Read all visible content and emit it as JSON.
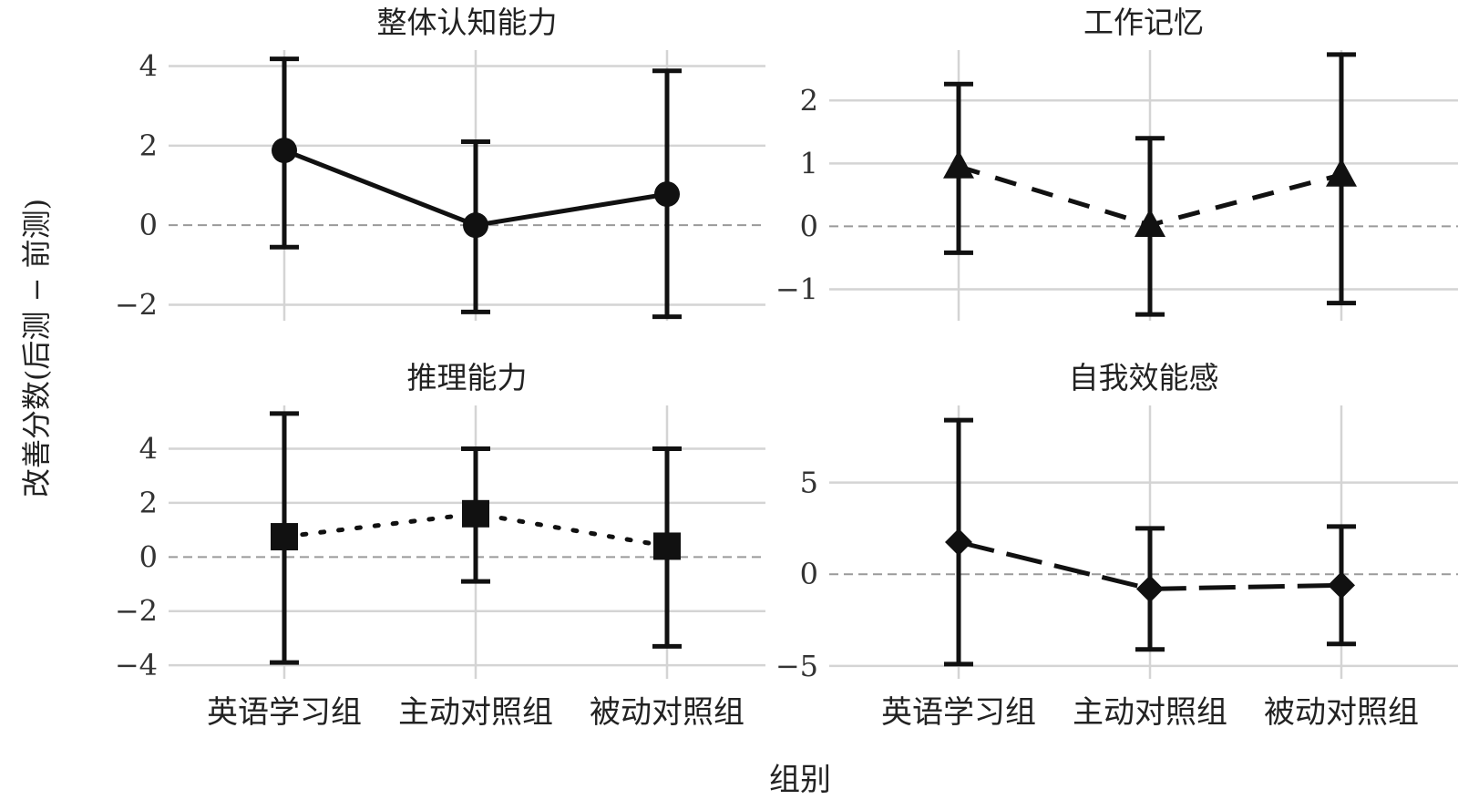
{
  "figure": {
    "ylabel": "改善分数(后测 − 前测)",
    "xlabel": "组别"
  },
  "chart_data": [
    {
      "type": "line",
      "title": "整体认知能力",
      "categories": [
        "英语学习组",
        "主动对照组",
        "被动对照组"
      ],
      "ylim": [
        -2.4,
        4.4
      ],
      "yticks": [
        -2,
        0,
        2,
        4
      ],
      "ytick_labels": [
        "−2",
        "0",
        "2",
        "4"
      ],
      "show_xtick_labels": false,
      "marker": "circle",
      "line_style": "solid",
      "values": [
        1.88,
        0.0,
        0.78
      ],
      "error_low": [
        -0.55,
        -2.18,
        -2.3
      ],
      "error_high": [
        4.18,
        2.1,
        3.88
      ],
      "grid": true,
      "zero_line": "dashed"
    },
    {
      "type": "line",
      "title": "工作记忆",
      "categories": [
        "英语学习组",
        "主动对照组",
        "被动对照组"
      ],
      "ylim": [
        -1.5,
        2.8
      ],
      "yticks": [
        -1,
        0,
        1,
        2
      ],
      "ytick_labels": [
        "−1",
        "0",
        "1",
        "2"
      ],
      "show_xtick_labels": false,
      "marker": "triangle",
      "line_style": "dashed",
      "values": [
        0.95,
        0.02,
        0.82
      ],
      "error_low": [
        -0.42,
        -1.4,
        -1.22
      ],
      "error_high": [
        2.26,
        1.4,
        2.73
      ],
      "grid": true,
      "zero_line": "dashed"
    },
    {
      "type": "line",
      "title": "推理能力",
      "categories": [
        "英语学习组",
        "主动对照组",
        "被动对照组"
      ],
      "ylim": [
        -4.5,
        5.6
      ],
      "yticks": [
        -4,
        -2,
        0,
        2,
        4
      ],
      "ytick_labels": [
        "−4",
        "−2",
        "0",
        "2",
        "4"
      ],
      "show_xtick_labels": true,
      "marker": "square",
      "line_style": "dotted",
      "values": [
        0.75,
        1.6,
        0.4
      ],
      "error_low": [
        -3.9,
        -0.9,
        -3.3
      ],
      "error_high": [
        5.3,
        4.0,
        4.0
      ],
      "grid": true,
      "zero_line": "dashed"
    },
    {
      "type": "line",
      "title": "自我效能感",
      "categories": [
        "英语学习组",
        "主动对照组",
        "被动对照组"
      ],
      "ylim": [
        -5.7,
        9.2
      ],
      "yticks": [
        -5,
        0,
        5
      ],
      "ytick_labels": [
        "−5",
        "0",
        "5"
      ],
      "show_xtick_labels": true,
      "marker": "diamond",
      "line_style": "longdash",
      "values": [
        1.75,
        -0.8,
        -0.6
      ],
      "error_low": [
        -4.9,
        -4.1,
        -3.8
      ],
      "error_high": [
        8.4,
        2.5,
        2.6
      ],
      "grid": true,
      "zero_line": "dashed"
    }
  ]
}
